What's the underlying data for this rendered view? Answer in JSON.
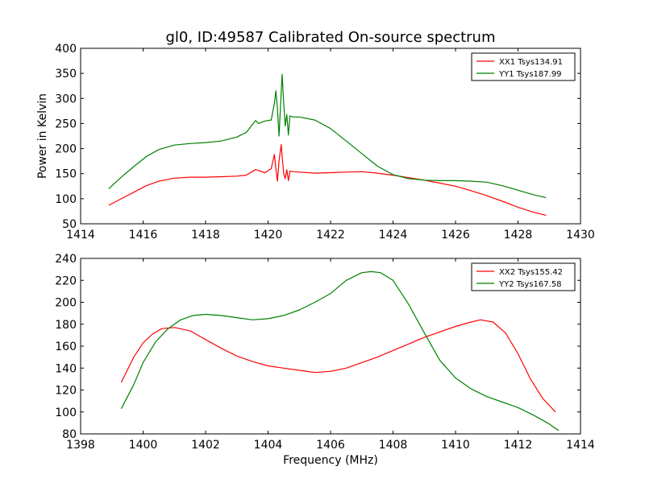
{
  "figure": {
    "title": "gl0, ID:49587 Calibrated On-source spectrum"
  },
  "chart_data": [
    {
      "type": "line",
      "title": "gl0, ID:49587 Calibrated On-source spectrum",
      "xlabel": "",
      "ylabel": "Power in Kelvin",
      "xlim": [
        1414,
        1430
      ],
      "ylim": [
        50,
        400
      ],
      "xticks": [
        "1414",
        "1416",
        "1418",
        "1420",
        "1422",
        "1424",
        "1426",
        "1428",
        "1430"
      ],
      "yticks": [
        "50",
        "100",
        "150",
        "200",
        "250",
        "300",
        "350",
        "400"
      ],
      "grid": false,
      "legend_position": "top-right",
      "series": [
        {
          "name": "XX1 Tsys134.91",
          "color": "#ff0000",
          "x": [
            1414.9,
            1415.3,
            1415.7,
            1416.1,
            1416.5,
            1417.0,
            1417.5,
            1418.0,
            1418.5,
            1419.0,
            1419.3,
            1419.6,
            1419.9,
            1420.1,
            1420.2,
            1420.25,
            1420.3,
            1420.35,
            1420.42,
            1420.45,
            1420.5,
            1420.55,
            1420.6,
            1420.65,
            1420.7,
            1420.8,
            1421.0,
            1421.5,
            1422.0,
            1422.5,
            1423.0,
            1423.5,
            1424.0,
            1424.5,
            1425.0,
            1425.5,
            1426.0,
            1426.5,
            1427.0,
            1427.5,
            1428.0,
            1428.5,
            1428.9
          ],
          "y": [
            87,
            100,
            113,
            126,
            135,
            141,
            143,
            143,
            144,
            145,
            147,
            158,
            152,
            160,
            188,
            160,
            135,
            175,
            208,
            185,
            150,
            140,
            158,
            136,
            155,
            154,
            153,
            151,
            152,
            153,
            154,
            151,
            147,
            142,
            137,
            131,
            125,
            116,
            106,
            95,
            83,
            73,
            67
          ]
        },
        {
          "name": "YY1 Tsys187.99",
          "color": "#008000",
          "x": [
            1414.9,
            1415.3,
            1415.7,
            1416.1,
            1416.5,
            1417.0,
            1417.5,
            1418.0,
            1418.5,
            1419.0,
            1419.3,
            1419.6,
            1419.7,
            1419.9,
            1420.1,
            1420.2,
            1420.25,
            1420.3,
            1420.35,
            1420.45,
            1420.5,
            1420.55,
            1420.6,
            1420.65,
            1420.7,
            1420.8,
            1421.0,
            1421.5,
            1422.0,
            1422.5,
            1423.0,
            1423.5,
            1424.0,
            1424.5,
            1425.0,
            1425.5,
            1426.0,
            1426.5,
            1427.0,
            1427.5,
            1428.0,
            1428.5,
            1428.9
          ],
          "y": [
            120,
            143,
            164,
            184,
            198,
            207,
            210,
            212,
            215,
            223,
            232,
            256,
            250,
            255,
            257,
            290,
            315,
            280,
            225,
            348,
            290,
            245,
            268,
            227,
            265,
            263,
            263,
            257,
            240,
            215,
            190,
            165,
            148,
            140,
            137,
            136,
            136,
            135,
            133,
            126,
            117,
            108,
            102
          ]
        }
      ]
    },
    {
      "type": "line",
      "title": "",
      "xlabel": "Frequency (MHz)",
      "ylabel": "",
      "xlim": [
        1398,
        1414
      ],
      "ylim": [
        80,
        240
      ],
      "xticks": [
        "1398",
        "1400",
        "1402",
        "1404",
        "1406",
        "1408",
        "1410",
        "1412",
        "1414"
      ],
      "yticks": [
        "80",
        "100",
        "120",
        "140",
        "160",
        "180",
        "200",
        "220",
        "240"
      ],
      "grid": false,
      "legend_position": "top-right",
      "series": [
        {
          "name": "XX2 Tsys155.42",
          "color": "#ff0000",
          "x": [
            1399.3,
            1399.7,
            1400.0,
            1400.3,
            1400.6,
            1401.0,
            1401.5,
            1402.0,
            1402.5,
            1403.0,
            1403.5,
            1404.0,
            1404.5,
            1405.0,
            1405.5,
            1406.0,
            1406.5,
            1407.0,
            1407.5,
            1408.0,
            1408.5,
            1409.0,
            1409.5,
            1410.0,
            1410.5,
            1410.8,
            1411.2,
            1411.6,
            1412.0,
            1412.4,
            1412.8,
            1413.2
          ],
          "y": [
            127,
            150,
            163,
            171,
            176,
            177,
            174,
            166,
            158,
            151,
            146,
            142,
            140,
            138,
            136,
            137,
            140,
            145,
            150,
            156,
            162,
            168,
            173,
            178,
            182,
            184,
            182,
            172,
            153,
            130,
            112,
            100
          ]
        },
        {
          "name": "YY2 Tsys167.58",
          "color": "#008000",
          "x": [
            1399.3,
            1399.7,
            1400.0,
            1400.4,
            1400.8,
            1401.2,
            1401.6,
            1402.0,
            1402.5,
            1403.0,
            1403.5,
            1404.0,
            1404.5,
            1405.0,
            1405.5,
            1406.0,
            1406.5,
            1407.0,
            1407.3,
            1407.6,
            1408.0,
            1408.5,
            1409.0,
            1409.5,
            1410.0,
            1410.5,
            1411.0,
            1411.5,
            1412.0,
            1412.5,
            1413.0,
            1413.3
          ],
          "y": [
            103,
            125,
            145,
            164,
            176,
            184,
            188,
            189,
            188,
            186,
            184,
            185,
            188,
            193,
            200,
            208,
            220,
            227,
            228,
            227,
            220,
            198,
            172,
            147,
            131,
            121,
            114,
            109,
            104,
            97,
            89,
            83
          ]
        }
      ]
    }
  ]
}
